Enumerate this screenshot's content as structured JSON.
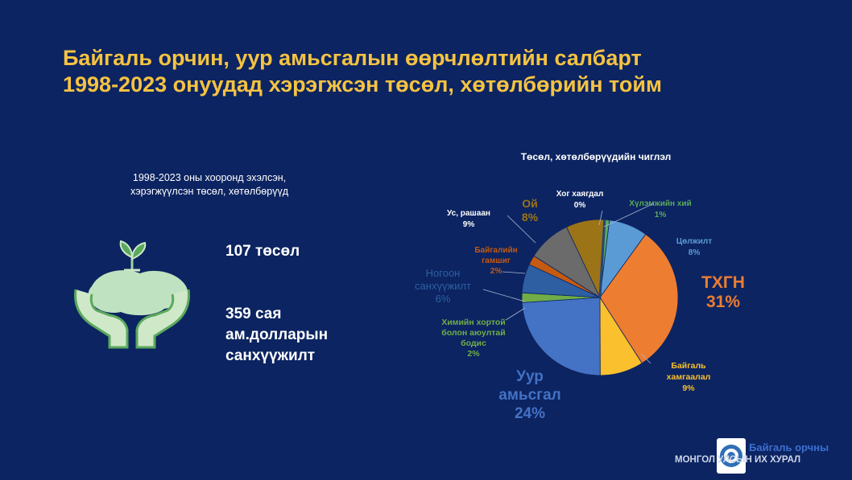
{
  "title_line1": "Байгаль орчин, уур амьсгалын өөрчлөлтийн салбарт",
  "title_line2": "1998-2023 онуудад хэрэгжсэн төсөл, хөтөлбөрийн тойм",
  "left_caption_line1": "1998-2023 оны хооронд эхэлсэн,",
  "left_caption_line2": "хэрэгжүүлсэн төсөл, хөтөлбөрүүд",
  "icon": "hands-holding-plant-icon",
  "stat_projects": "107 төсөл",
  "stat_funding_line1": "359 сая",
  "stat_funding_line2": "ам.долларын",
  "stat_funding_line3": "санхүүжилт",
  "footer_org_line1": "Байгаль орчны",
  "footer_org_line2": "МОНГОЛ УЛСЫН ИХ ХУРАЛ",
  "chart_data": {
    "type": "pie",
    "title": "Төсөл, хөтөлбөрүүдийн чиглэл",
    "slices": [
      {
        "label": "Хүлэмжийн хий",
        "value": 1,
        "display": "1%",
        "color": "#5aa95d"
      },
      {
        "label": "Цөлжилт",
        "value": 8,
        "display": "8%",
        "color": "#5b9bd5"
      },
      {
        "label": "ТХГН",
        "value": 31,
        "display": "31%",
        "color": "#ed7d31"
      },
      {
        "label": "Байгаль хамгаалал",
        "value": 9,
        "display": "9%",
        "color": "#fbc02d"
      },
      {
        "label": "Уур амьсгал",
        "value": 24,
        "display": "24%",
        "color": "#4472c4"
      },
      {
        "label": "Химийн хортой болон аюултай бодис",
        "value": 2,
        "display": "2%",
        "color": "#70ad47"
      },
      {
        "label": "Ногоон санхүүжилт",
        "value": 6,
        "display": "6%",
        "color": "#2e5fa3"
      },
      {
        "label": "Байгалийн гамшиг",
        "value": 2,
        "display": "2%",
        "color": "#c55a11"
      },
      {
        "label": "Ус, рашаан",
        "value": 9,
        "display": "9%",
        "color": "#6b6b6b"
      },
      {
        "label": "Ой",
        "value": 8,
        "display": "8%",
        "color": "#9c7418"
      },
      {
        "label": "Хог хаягдал",
        "value": 0,
        "display": "0%",
        "color": "#264478"
      }
    ]
  }
}
